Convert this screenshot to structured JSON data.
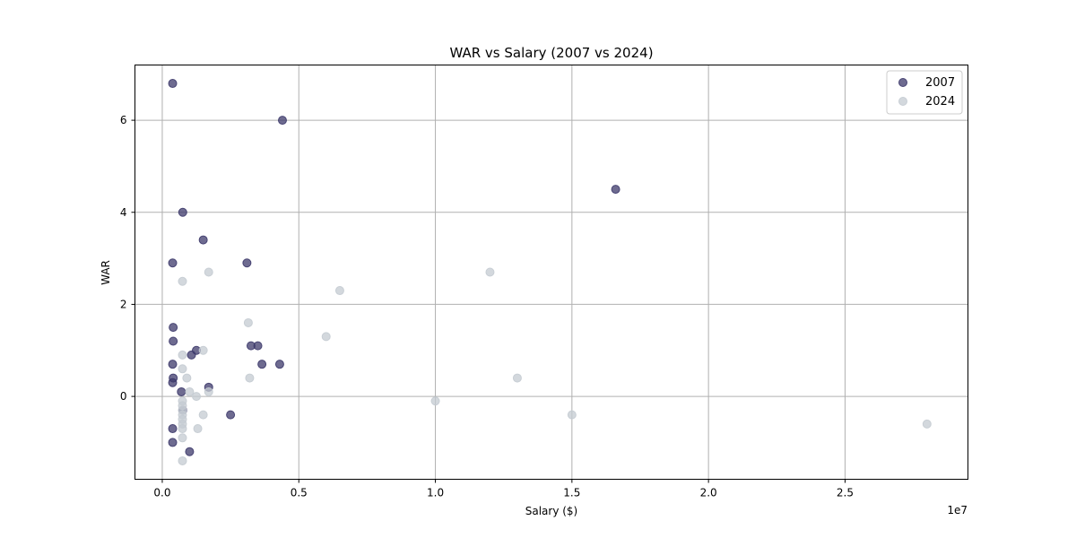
{
  "chart_data": {
    "type": "scatter",
    "title": "WAR vs Salary (2007 vs 2024)",
    "xlabel": "Salary ($)",
    "ylabel": "WAR",
    "x_offset_label": "1e7",
    "xlim": [
      -1000000,
      29500000
    ],
    "ylim": [
      -1.8,
      7.2
    ],
    "x_ticks": [
      0,
      5000000,
      10000000,
      15000000,
      20000000,
      25000000
    ],
    "x_tick_labels": [
      "0.0",
      "0.5",
      "1.0",
      "1.5",
      "2.0",
      "2.5"
    ],
    "y_ticks": [
      0,
      2,
      4,
      6
    ],
    "y_tick_labels": [
      "0",
      "2",
      "4",
      "6"
    ],
    "grid": true,
    "legend_position": "top-right",
    "series": [
      {
        "name": "2007",
        "color": "#3d3a6b",
        "points": [
          {
            "x": 380000,
            "y": 6.8
          },
          {
            "x": 4400000,
            "y": 6.0
          },
          {
            "x": 16600000,
            "y": 4.5
          },
          {
            "x": 750000,
            "y": 4.0
          },
          {
            "x": 1500000,
            "y": 3.4
          },
          {
            "x": 380000,
            "y": 2.9
          },
          {
            "x": 3100000,
            "y": 2.9
          },
          {
            "x": 400000,
            "y": 1.5
          },
          {
            "x": 400000,
            "y": 1.2
          },
          {
            "x": 3250000,
            "y": 1.1
          },
          {
            "x": 3500000,
            "y": 1.1
          },
          {
            "x": 1250000,
            "y": 1.0
          },
          {
            "x": 1070000,
            "y": 0.9
          },
          {
            "x": 380000,
            "y": 0.7
          },
          {
            "x": 3650000,
            "y": 0.7
          },
          {
            "x": 4300000,
            "y": 0.7
          },
          {
            "x": 400000,
            "y": 0.4
          },
          {
            "x": 380000,
            "y": 0.3
          },
          {
            "x": 1700000,
            "y": 0.2
          },
          {
            "x": 700000,
            "y": 0.1
          },
          {
            "x": 750000,
            "y": -0.3
          },
          {
            "x": 2500000,
            "y": -0.4
          },
          {
            "x": 380000,
            "y": -0.7
          },
          {
            "x": 380000,
            "y": -1.0
          },
          {
            "x": 1000000,
            "y": -1.2
          }
        ]
      },
      {
        "name": "2024",
        "color": "#c4cbd2",
        "points": [
          {
            "x": 740000,
            "y": 2.5
          },
          {
            "x": 1700000,
            "y": 2.7
          },
          {
            "x": 12000000,
            "y": 2.7
          },
          {
            "x": 6500000,
            "y": 2.3
          },
          {
            "x": 3150000,
            "y": 1.6
          },
          {
            "x": 6000000,
            "y": 1.3
          },
          {
            "x": 1500000,
            "y": 1.0
          },
          {
            "x": 740000,
            "y": 0.9
          },
          {
            "x": 740000,
            "y": 0.6
          },
          {
            "x": 900000,
            "y": 0.4
          },
          {
            "x": 3200000,
            "y": 0.4
          },
          {
            "x": 13000000,
            "y": 0.4
          },
          {
            "x": 1000000,
            "y": 0.1
          },
          {
            "x": 1700000,
            "y": 0.1
          },
          {
            "x": 1250000,
            "y": 0.0
          },
          {
            "x": 740000,
            "y": -0.1
          },
          {
            "x": 10000000,
            "y": -0.1
          },
          {
            "x": 740000,
            "y": -0.2
          },
          {
            "x": 740000,
            "y": -0.3
          },
          {
            "x": 740000,
            "y": -0.4
          },
          {
            "x": 1500000,
            "y": -0.4
          },
          {
            "x": 15000000,
            "y": -0.4
          },
          {
            "x": 740000,
            "y": -0.5
          },
          {
            "x": 740000,
            "y": -0.6
          },
          {
            "x": 28000000,
            "y": -0.6
          },
          {
            "x": 740000,
            "y": -0.7
          },
          {
            "x": 1300000,
            "y": -0.7
          },
          {
            "x": 740000,
            "y": -0.9
          },
          {
            "x": 740000,
            "y": -1.4
          }
        ]
      }
    ]
  }
}
